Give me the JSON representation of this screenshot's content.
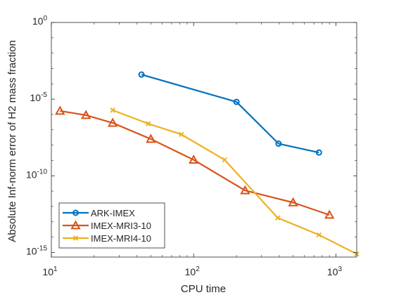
{
  "chart_data": {
    "type": "line",
    "title": "",
    "xlabel": "CPU time",
    "ylabel": "Absolute Inf-norm error of H2 mass fraction",
    "xscale": "log",
    "yscale": "log",
    "xlim": [
      10,
      1400
    ],
    "ylim": [
      5e-16,
      1
    ],
    "xticks": [
      {
        "value": 10,
        "label": "10",
        "sup": "1"
      },
      {
        "value": 100,
        "label": "10",
        "sup": "2"
      },
      {
        "value": 1000,
        "label": "10",
        "sup": "3"
      }
    ],
    "yticks": [
      {
        "value": 1e-15,
        "label": "10",
        "sup": "-15"
      },
      {
        "value": 1e-10,
        "label": "10",
        "sup": "-10"
      },
      {
        "value": 1e-05,
        "label": "10",
        "sup": "-5"
      },
      {
        "value": 1,
        "label": "10",
        "sup": "0"
      }
    ],
    "grid": false,
    "legend_position": "bottom-left",
    "series": [
      {
        "name": "ARK-IMEX",
        "color": "#0072BD",
        "marker": "circle",
        "x": [
          43,
          200,
          395,
          760
        ],
        "y": [
          0.0004,
          6.6e-06,
          1.25e-08,
          3.3e-09
        ]
      },
      {
        "name": "IMEX-MRI3-10",
        "color": "#D95319",
        "marker": "triangle",
        "x": [
          11.5,
          17.5,
          27,
          50,
          100,
          230,
          500,
          900
        ],
        "y": [
          1.7e-06,
          9e-07,
          2.8e-07,
          2.5e-08,
          1.1e-09,
          1.1e-11,
          1.8e-12,
          2.8e-13
        ]
      },
      {
        "name": "IMEX-MRI4-10",
        "color": "#EDB120",
        "marker": "x",
        "x": [
          27,
          48,
          82,
          165,
          390,
          760,
          1400
        ],
        "y": [
          1.9e-06,
          2.5e-07,
          5e-08,
          1.1e-09,
          1.8e-13,
          1.4e-14,
          8e-16
        ]
      }
    ]
  }
}
